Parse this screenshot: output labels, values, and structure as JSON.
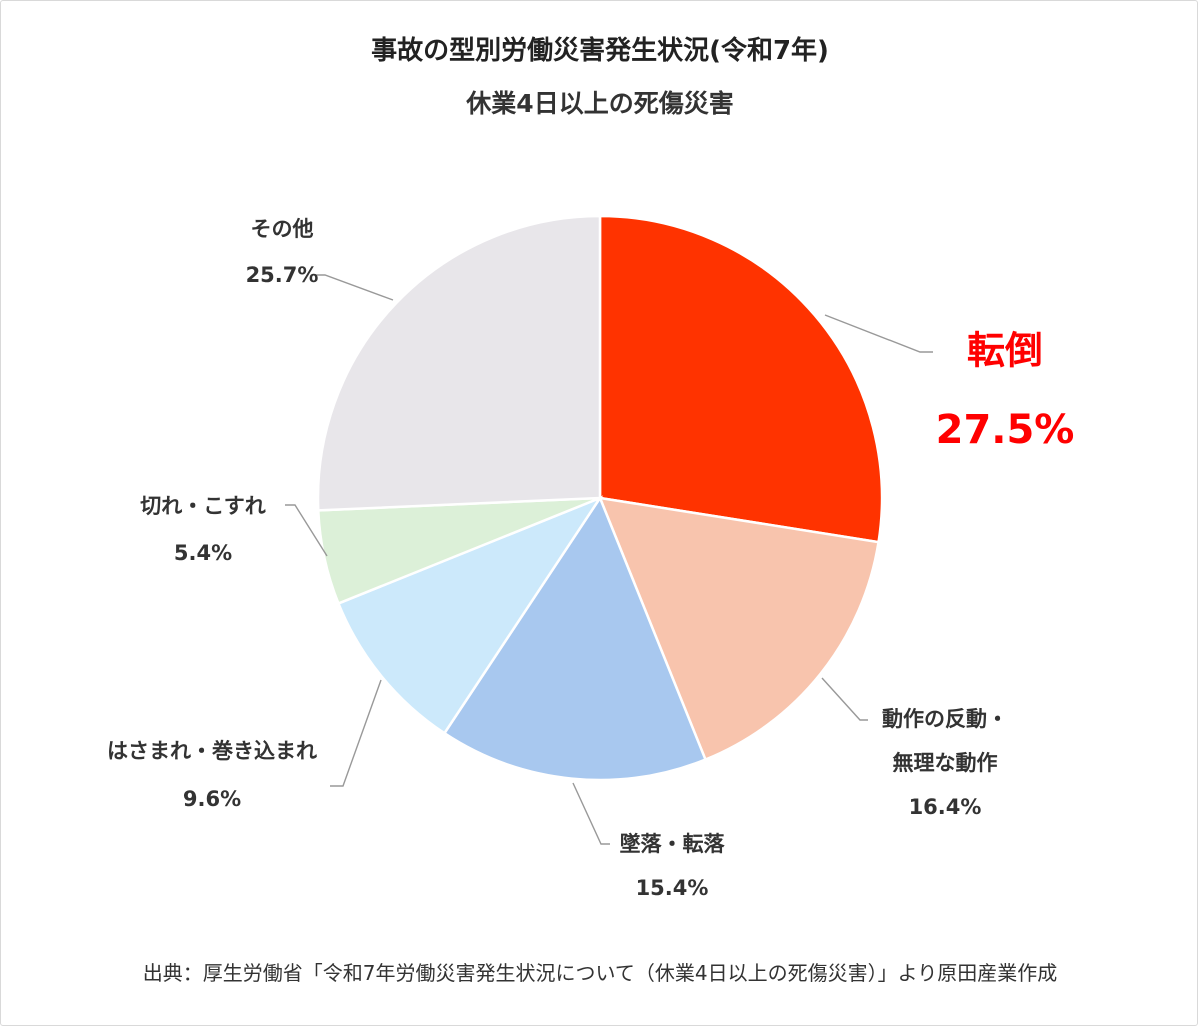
{
  "colors": {
    "label_default": "#333333",
    "highlight_label": "#ff0000",
    "leader_line": "#999999",
    "slice_border": "#ffffff"
  },
  "chart_data": {
    "type": "pie",
    "title": "事故の型別労働災害発生状況(令和7年)",
    "subtitle": "休業4日以上の死傷災害",
    "start_angle_deg": 0,
    "direction": "clockwise",
    "slices": [
      {
        "label": "転倒",
        "value": 27.5,
        "value_label": "27.5%",
        "color": "#ff3300",
        "highlight": true
      },
      {
        "label": "動作の反動・無理な動作",
        "label_lines": [
          "動作の反動・",
          "無理な動作"
        ],
        "value": 16.4,
        "value_label": "16.4%",
        "color": "#f8c4ad"
      },
      {
        "label": "墜落・転落",
        "value": 15.4,
        "value_label": "15.4%",
        "color": "#a8c8ef"
      },
      {
        "label": "はさまれ・巻き込まれ",
        "value": 9.6,
        "value_label": "9.6%",
        "color": "#cce9fb"
      },
      {
        "label": "切れ・こすれ",
        "value": 5.4,
        "value_label": "5.4%",
        "color": "#dcf0d8"
      },
      {
        "label": "その他",
        "value": 25.7,
        "value_label": "25.7%",
        "color": "#e8e6ea"
      }
    ],
    "source": "出典：厚生労働省「令和7年労働災害発生状況について（休業4日以上の死傷災害）」より原田産業作成"
  }
}
